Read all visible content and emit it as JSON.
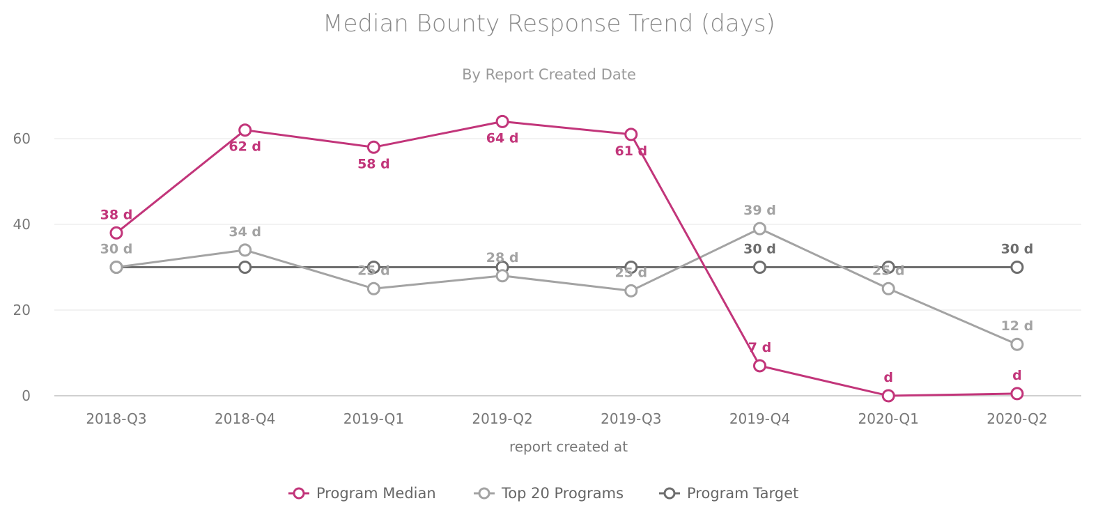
{
  "chart_data": {
    "type": "line",
    "title": "Median Bounty Response Trend (days)",
    "subtitle": "By Report Created Date",
    "xlabel": "report created at",
    "ylabel": "",
    "categories": [
      "2018-Q3",
      "2018-Q4",
      "2019-Q1",
      "2019-Q2",
      "2019-Q3",
      "2019-Q4",
      "2020-Q1",
      "2020-Q2"
    ],
    "ylim": [
      0,
      70
    ],
    "yticks": [
      0,
      20,
      40,
      60
    ],
    "grid": true,
    "legend_position": "bottom",
    "series": [
      {
        "name": "Program Median",
        "color": "#c2357a",
        "values": [
          38,
          62,
          58,
          64,
          61,
          7,
          0,
          0.5
        ],
        "labels": [
          "38 d",
          "62 d",
          "58 d",
          "64 d",
          "61 d",
          "7 d",
          "d",
          "d"
        ]
      },
      {
        "name": "Top 20 Programs",
        "color": "#a3a3a3",
        "values": [
          30,
          34,
          25,
          28,
          24.5,
          39,
          25,
          12
        ],
        "labels": [
          "30 d",
          "34 d",
          "25 d",
          "28 d",
          "25 d",
          "39 d",
          "25 d",
          "12 d"
        ]
      },
      {
        "name": "Program Target",
        "color": "#6d6d6d",
        "values": [
          30,
          30,
          30,
          30,
          30,
          30,
          30,
          30
        ],
        "labels": [
          "",
          "",
          "",
          "",
          "",
          "30 d",
          "",
          "30 d"
        ]
      }
    ]
  }
}
